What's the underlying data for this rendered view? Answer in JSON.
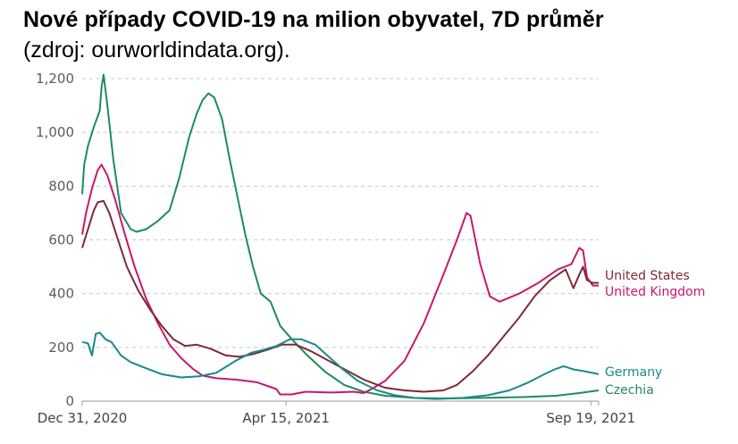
{
  "title": "Nové případy COVID-19 na milion obyvatel, 7D průměr",
  "subtitle": "(zdroj: ourworldindata.org).",
  "chart_data": {
    "type": "line",
    "ylim": [
      0,
      1200
    ],
    "yticks": [
      "0",
      "200",
      "400",
      "600",
      "800",
      "1,000",
      "1,200"
    ],
    "yticks_values": [
      0,
      200,
      400,
      600,
      800,
      1000,
      1200
    ],
    "xticks": [
      "Dec 31, 2020",
      "Apr 15, 2021",
      "Sep 19, 2021"
    ],
    "xticks_dates": [
      "2020-12-31",
      "2021-04-15",
      "2021-09-19"
    ],
    "xlim": [
      "2020-12-31",
      "2021-09-23"
    ],
    "grid": "horizontal dashed",
    "series": [
      {
        "name": "Czechia",
        "color": "#1d8c5a",
        "points": [
          [
            "2020-12-31",
            770
          ],
          [
            "2021-01-01",
            880
          ],
          [
            "2021-01-03",
            950
          ],
          [
            "2021-01-06",
            1020
          ],
          [
            "2021-01-09",
            1080
          ],
          [
            "2021-01-10",
            1170
          ],
          [
            "2021-01-11",
            1215
          ],
          [
            "2021-01-13",
            1100
          ],
          [
            "2021-01-16",
            900
          ],
          [
            "2021-01-20",
            700
          ],
          [
            "2021-01-25",
            640
          ],
          [
            "2021-01-28",
            630
          ],
          [
            "2021-02-02",
            640
          ],
          [
            "2021-02-08",
            670
          ],
          [
            "2021-02-14",
            710
          ],
          [
            "2021-02-19",
            830
          ],
          [
            "2021-02-24",
            980
          ],
          [
            "2021-02-28",
            1070
          ],
          [
            "2021-03-03",
            1120
          ],
          [
            "2021-03-06",
            1145
          ],
          [
            "2021-03-09",
            1130
          ],
          [
            "2021-03-13",
            1050
          ],
          [
            "2021-03-17",
            900
          ],
          [
            "2021-03-21",
            760
          ],
          [
            "2021-03-25",
            620
          ],
          [
            "2021-03-29",
            500
          ],
          [
            "2021-04-02",
            400
          ],
          [
            "2021-04-07",
            370
          ],
          [
            "2021-04-12",
            280
          ],
          [
            "2021-04-18",
            230
          ],
          [
            "2021-04-26",
            170
          ],
          [
            "2021-05-05",
            110
          ],
          [
            "2021-05-15",
            60
          ],
          [
            "2021-05-25",
            35
          ],
          [
            "2021-06-05",
            20
          ],
          [
            "2021-06-20",
            12
          ],
          [
            "2021-07-05",
            10
          ],
          [
            "2021-07-25",
            12
          ],
          [
            "2021-08-15",
            15
          ],
          [
            "2021-09-01",
            20
          ],
          [
            "2021-09-13",
            30
          ],
          [
            "2021-09-23",
            40
          ]
        ]
      },
      {
        "name": "United Kingdom",
        "color": "#c8176e",
        "points": [
          [
            "2020-12-31",
            620
          ],
          [
            "2021-01-02",
            700
          ],
          [
            "2021-01-05",
            790
          ],
          [
            "2021-01-08",
            860
          ],
          [
            "2021-01-10",
            880
          ],
          [
            "2021-01-13",
            840
          ],
          [
            "2021-01-17",
            750
          ],
          [
            "2021-01-22",
            620
          ],
          [
            "2021-01-27",
            500
          ],
          [
            "2021-02-02",
            380
          ],
          [
            "2021-02-08",
            290
          ],
          [
            "2021-02-14",
            210
          ],
          [
            "2021-02-20",
            160
          ],
          [
            "2021-02-26",
            120
          ],
          [
            "2021-03-03",
            95
          ],
          [
            "2021-03-10",
            85
          ],
          [
            "2021-03-20",
            80
          ],
          [
            "2021-03-31",
            70
          ],
          [
            "2021-04-10",
            45
          ],
          [
            "2021-04-12",
            25
          ],
          [
            "2021-04-18",
            25
          ],
          [
            "2021-04-25",
            35
          ],
          [
            "2021-05-08",
            32
          ],
          [
            "2021-05-20",
            35
          ],
          [
            "2021-05-25",
            30
          ],
          [
            "2021-05-29",
            45
          ],
          [
            "2021-06-05",
            75
          ],
          [
            "2021-06-15",
            150
          ],
          [
            "2021-06-25",
            290
          ],
          [
            "2021-07-05",
            470
          ],
          [
            "2021-07-12",
            600
          ],
          [
            "2021-07-17",
            700
          ],
          [
            "2021-07-19",
            690
          ],
          [
            "2021-07-24",
            510
          ],
          [
            "2021-07-29",
            390
          ],
          [
            "2021-08-03",
            370
          ],
          [
            "2021-08-13",
            400
          ],
          [
            "2021-08-23",
            440
          ],
          [
            "2021-09-02",
            490
          ],
          [
            "2021-09-09",
            510
          ],
          [
            "2021-09-13",
            570
          ],
          [
            "2021-09-15",
            560
          ],
          [
            "2021-09-17",
            460
          ],
          [
            "2021-09-20",
            430
          ],
          [
            "2021-09-23",
            430
          ]
        ]
      },
      {
        "name": "United States",
        "color": "#7d2a35",
        "points": [
          [
            "2020-12-31",
            570
          ],
          [
            "2021-01-03",
            640
          ],
          [
            "2021-01-06",
            710
          ],
          [
            "2021-01-08",
            740
          ],
          [
            "2021-01-11",
            745
          ],
          [
            "2021-01-14",
            700
          ],
          [
            "2021-01-18",
            610
          ],
          [
            "2021-01-23",
            500
          ],
          [
            "2021-01-29",
            410
          ],
          [
            "2021-02-04",
            340
          ],
          [
            "2021-02-10",
            280
          ],
          [
            "2021-02-16",
            230
          ],
          [
            "2021-02-22",
            205
          ],
          [
            "2021-02-28",
            210
          ],
          [
            "2021-03-07",
            195
          ],
          [
            "2021-03-15",
            170
          ],
          [
            "2021-03-22",
            165
          ],
          [
            "2021-03-29",
            175
          ],
          [
            "2021-04-05",
            190
          ],
          [
            "2021-04-13",
            210
          ],
          [
            "2021-04-20",
            210
          ],
          [
            "2021-04-28",
            185
          ],
          [
            "2021-05-07",
            150
          ],
          [
            "2021-05-16",
            115
          ],
          [
            "2021-05-25",
            80
          ],
          [
            "2021-06-05",
            50
          ],
          [
            "2021-06-15",
            40
          ],
          [
            "2021-06-25",
            35
          ],
          [
            "2021-07-05",
            40
          ],
          [
            "2021-07-12",
            60
          ],
          [
            "2021-07-20",
            110
          ],
          [
            "2021-07-28",
            170
          ],
          [
            "2021-08-05",
            240
          ],
          [
            "2021-08-13",
            310
          ],
          [
            "2021-08-21",
            390
          ],
          [
            "2021-08-29",
            450
          ],
          [
            "2021-09-06",
            490
          ],
          [
            "2021-09-10",
            420
          ],
          [
            "2021-09-13",
            470
          ],
          [
            "2021-09-15",
            500
          ],
          [
            "2021-09-17",
            450
          ],
          [
            "2021-09-20",
            440
          ],
          [
            "2021-09-23",
            440
          ]
        ]
      },
      {
        "name": "Germany",
        "color": "#178a8a",
        "points": [
          [
            "2020-12-31",
            220
          ],
          [
            "2021-01-03",
            215
          ],
          [
            "2021-01-05",
            170
          ],
          [
            "2021-01-07",
            250
          ],
          [
            "2021-01-09",
            255
          ],
          [
            "2021-01-12",
            230
          ],
          [
            "2021-01-15",
            220
          ],
          [
            "2021-01-20",
            170
          ],
          [
            "2021-01-25",
            145
          ],
          [
            "2021-02-01",
            125
          ],
          [
            "2021-02-10",
            100
          ],
          [
            "2021-02-20",
            88
          ],
          [
            "2021-03-01",
            92
          ],
          [
            "2021-03-10",
            105
          ],
          [
            "2021-03-20",
            150
          ],
          [
            "2021-03-28",
            180
          ],
          [
            "2021-04-03",
            190
          ],
          [
            "2021-04-10",
            205
          ],
          [
            "2021-04-17",
            230
          ],
          [
            "2021-04-23",
            230
          ],
          [
            "2021-04-30",
            210
          ],
          [
            "2021-05-07",
            165
          ],
          [
            "2021-05-14",
            120
          ],
          [
            "2021-05-22",
            75
          ],
          [
            "2021-06-01",
            40
          ],
          [
            "2021-06-10",
            22
          ],
          [
            "2021-06-20",
            12
          ],
          [
            "2021-07-01",
            8
          ],
          [
            "2021-07-15",
            12
          ],
          [
            "2021-07-28",
            22
          ],
          [
            "2021-08-08",
            40
          ],
          [
            "2021-08-18",
            70
          ],
          [
            "2021-08-26",
            100
          ],
          [
            "2021-09-01",
            120
          ],
          [
            "2021-09-05",
            130
          ],
          [
            "2021-09-10",
            118
          ],
          [
            "2021-09-15",
            112
          ],
          [
            "2021-09-20",
            105
          ],
          [
            "2021-09-23",
            100
          ]
        ]
      }
    ]
  },
  "labels": {
    "us": "United States",
    "uk": "United Kingdom",
    "de": "Germany",
    "cz": "Czechia"
  }
}
